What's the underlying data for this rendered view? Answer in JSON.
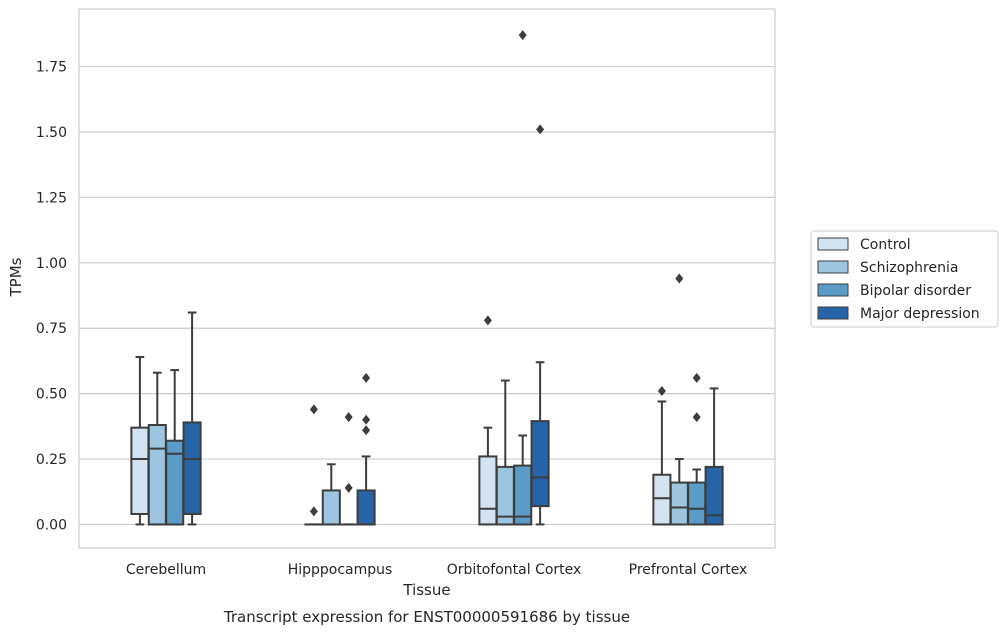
{
  "chart_data": {
    "type": "box",
    "caption": "Transcript expression for ENST00000591686 by tissue",
    "xlabel": "Tissue",
    "ylabel": "TPMs",
    "ylim": [
      -0.09,
      1.97
    ],
    "yticks": [
      "0.00",
      "0.25",
      "0.50",
      "0.75",
      "1.00",
      "1.25",
      "1.50",
      "1.75"
    ],
    "grid": true,
    "legend_position": "right",
    "categories": [
      "Cerebellum",
      "Hipppocampus",
      "Orbitofontal Cortex",
      "Prefrontal Cortex"
    ],
    "series": [
      {
        "name": "Control",
        "color": "#d3e3f2",
        "boxes": [
          {
            "q1": 0.04,
            "median": 0.25,
            "q3": 0.37,
            "whislo": 0.0,
            "whishi": 0.64,
            "fliers": []
          },
          {
            "q1": 0.0,
            "median": 0.0,
            "q3": 0.0,
            "whislo": 0.0,
            "whishi": 0.0,
            "fliers": [
              0.05,
              0.44
            ]
          },
          {
            "q1": 0.0,
            "median": 0.06,
            "q3": 0.26,
            "whislo": 0.0,
            "whishi": 0.37,
            "fliers": [
              0.78
            ]
          },
          {
            "q1": 0.0,
            "median": 0.1,
            "q3": 0.19,
            "whislo": 0.0,
            "whishi": 0.47,
            "fliers": [
              0.51
            ]
          }
        ]
      },
      {
        "name": "Schizophrenia",
        "color": "#9dc5e0",
        "boxes": [
          {
            "q1": 0.0,
            "median": 0.29,
            "q3": 0.38,
            "whislo": 0.0,
            "whishi": 0.58,
            "fliers": []
          },
          {
            "q1": 0.0,
            "median": 0.0,
            "q3": 0.13,
            "whislo": 0.0,
            "whishi": 0.23,
            "fliers": []
          },
          {
            "q1": 0.0,
            "median": 0.03,
            "q3": 0.22,
            "whislo": 0.0,
            "whishi": 0.55,
            "fliers": []
          },
          {
            "q1": 0.0,
            "median": 0.065,
            "q3": 0.16,
            "whislo": 0.0,
            "whishi": 0.25,
            "fliers": [
              0.94
            ]
          }
        ]
      },
      {
        "name": "Bipolar disorder",
        "color": "#5a9bc8",
        "boxes": [
          {
            "q1": 0.0,
            "median": 0.27,
            "q3": 0.32,
            "whislo": 0.0,
            "whishi": 0.59,
            "fliers": []
          },
          {
            "q1": 0.0,
            "median": 0.0,
            "q3": 0.0,
            "whislo": 0.0,
            "whishi": 0.0,
            "fliers": [
              0.14,
              0.41
            ]
          },
          {
            "q1": 0.0,
            "median": 0.03,
            "q3": 0.225,
            "whislo": 0.0,
            "whishi": 0.34,
            "fliers": [
              1.87
            ]
          },
          {
            "q1": 0.0,
            "median": 0.06,
            "q3": 0.16,
            "whislo": 0.0,
            "whishi": 0.21,
            "fliers": [
              0.41,
              0.56
            ]
          }
        ]
      },
      {
        "name": "Major depression",
        "color": "#2565a7",
        "boxes": [
          {
            "q1": 0.04,
            "median": 0.25,
            "q3": 0.39,
            "whislo": 0.0,
            "whishi": 0.81,
            "fliers": []
          },
          {
            "q1": 0.0,
            "median": 0.0,
            "q3": 0.13,
            "whislo": 0.0,
            "whishi": 0.26,
            "fliers": [
              0.36,
              0.4,
              0.56
            ]
          },
          {
            "q1": 0.07,
            "median": 0.18,
            "q3": 0.395,
            "whislo": 0.0,
            "whishi": 0.62,
            "fliers": [
              1.51
            ]
          },
          {
            "q1": 0.0,
            "median": 0.035,
            "q3": 0.22,
            "whislo": 0.0,
            "whishi": 0.52,
            "fliers": []
          }
        ]
      }
    ]
  }
}
